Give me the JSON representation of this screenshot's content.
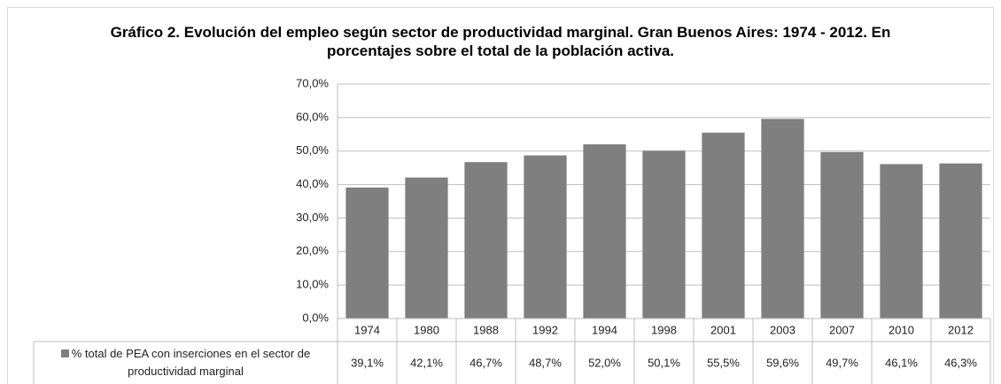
{
  "chart_data": {
    "type": "bar",
    "title": "Gráfico 2. Evolución del empleo según sector de productividad marginal. Gran Buenos Aires: 1974 - 2012. En porcentajes sobre el total de la población activa.",
    "categories": [
      "1974",
      "1980",
      "1988",
      "1992",
      "1994",
      "1998",
      "2001",
      "2003",
      "2007",
      "2010",
      "2012"
    ],
    "series": [
      {
        "name": "% total de PEA con inserciones en el sector de productividad marginal",
        "color": "#7f7f7f",
        "values": [
          39.1,
          42.1,
          46.7,
          48.7,
          52.0,
          50.1,
          55.5,
          59.6,
          49.7,
          46.1,
          46.3
        ],
        "value_labels": [
          "39,1%",
          "42,1%",
          "46,7%",
          "48,7%",
          "52,0%",
          "50,1%",
          "55,5%",
          "59,6%",
          "49,7%",
          "46,1%",
          "46,3%"
        ]
      }
    ],
    "ylim": [
      0,
      70
    ],
    "yticks": [
      {
        "value": 0,
        "label": "0,0%"
      },
      {
        "value": 10,
        "label": "10,0%"
      },
      {
        "value": 20,
        "label": "20,0%"
      },
      {
        "value": 30,
        "label": "30,0%"
      },
      {
        "value": 40,
        "label": "40,0%"
      },
      {
        "value": 50,
        "label": "50,0%"
      },
      {
        "value": 60,
        "label": "60,0%"
      },
      {
        "value": 70,
        "label": "70,0%"
      }
    ],
    "grid": true
  }
}
